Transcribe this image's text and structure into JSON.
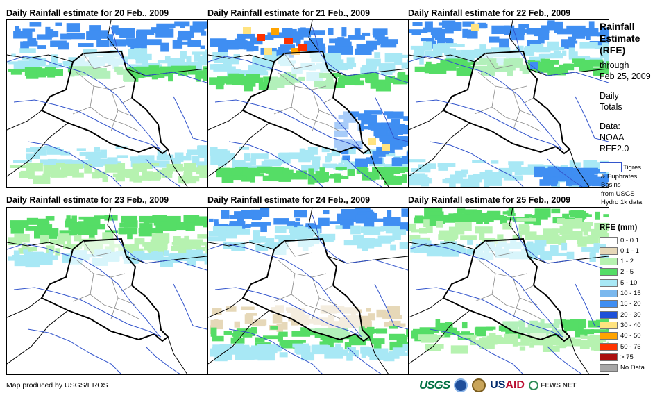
{
  "panels": [
    {
      "title": "Daily Rainfall estimate for 20 Feb., 2009"
    },
    {
      "title": "Daily Rainfall estimate for 21 Feb., 2009"
    },
    {
      "title": "Daily Rainfall estimate for 22 Feb., 2009"
    },
    {
      "title": "Daily Rainfall estimate for 23 Feb., 2009"
    },
    {
      "title": "Daily Rainfall estimate for 24 Feb., 2009"
    },
    {
      "title": "Daily Rainfall estimate for 25 Feb., 2009"
    }
  ],
  "legend": {
    "title_lines": [
      "Rainfall",
      "Estimate",
      "(RFE)"
    ],
    "through": "through",
    "date": "Feb 25, 2009",
    "daily": "Daily",
    "totals": "Totals",
    "data_label": "Data:",
    "data_source_1": "NOAA-",
    "data_source_2": "RFE2.0",
    "basin_lines": [
      "Tigres",
      "& Euphrates",
      "Basins",
      "from USGS",
      "Hydro 1k data"
    ],
    "rfe_title": "RFE (mm)",
    "classes": [
      {
        "label": "0 - 0.1",
        "color": "#ffffff"
      },
      {
        "label": "0.1 - 1",
        "color": "#e6d8b8"
      },
      {
        "label": "1 - 2",
        "color": "#b6f2b0"
      },
      {
        "label": "2 - 5",
        "color": "#55dd66"
      },
      {
        "label": "5 - 10",
        "color": "#a8e8f5"
      },
      {
        "label": "10 - 15",
        "color": "#7ab8ee"
      },
      {
        "label": "15 - 20",
        "color": "#3f8ef2"
      },
      {
        "label": "20 - 30",
        "color": "#1e50d8"
      },
      {
        "label": "30 - 40",
        "color": "#ffe380"
      },
      {
        "label": "40 - 50",
        "color": "#ffa300"
      },
      {
        "label": "50 - 75",
        "color": "#ff3300"
      },
      {
        "label": "> 75",
        "color": "#aa1010"
      },
      {
        "label": "No Data",
        "color": "#a8a8a8"
      }
    ]
  },
  "footer": {
    "credit": "Map produced by USGS/EROS",
    "logos": {
      "usgs": "USGS",
      "usaid_a": "US",
      "usaid_b": "AID",
      "fews": "FEWS NET"
    }
  }
}
